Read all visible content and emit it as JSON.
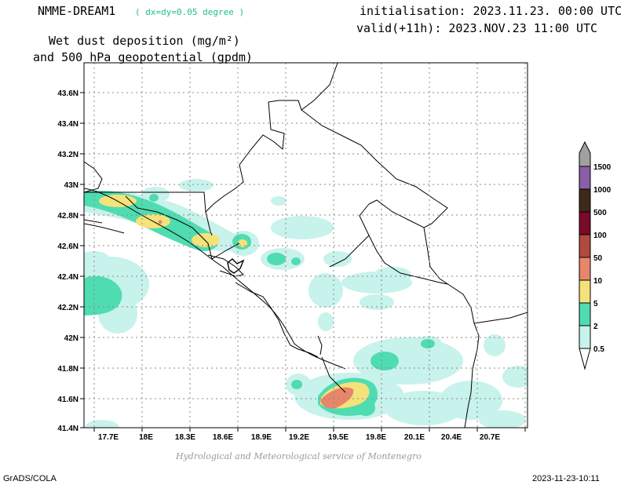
{
  "header": {
    "model": "NMME-DREAM1",
    "resolution": "( dx=dy=0.05 degree )",
    "title_line1": "Wet dust deposition (mg/m²)",
    "title_line2": "and 500 hPa geopotential (gpdm)",
    "init": "initialisation: 2023.11.23. 00:00 UTC",
    "valid": "valid(+11h): 2023.NOV.23 11:00 UTC"
  },
  "map": {
    "lat_labels": [
      "43.6N",
      "43.4N",
      "43.2N",
      "43N",
      "42.8N",
      "42.6N",
      "42.4N",
      "42.2N",
      "42N",
      "41.8N",
      "41.6N",
      "41.4N"
    ],
    "lon_labels": [
      "17.7E",
      "18E",
      "18.3E",
      "18.6E",
      "18.9E",
      "19.2E",
      "19.5E",
      "19.8E",
      "20.1E",
      "20.4E",
      "20.7E"
    ]
  },
  "legend": {
    "levels": [
      "1500",
      "1000",
      "500",
      "100",
      "50",
      "10",
      "5",
      "2",
      "0.5"
    ],
    "colors": [
      "#8a5ea8",
      "#3d2a1a",
      "#7a0a2a",
      "#b04a40",
      "#e8866a",
      "#f4e27a",
      "#4fdcb0",
      "#c8f2ec"
    ],
    "arrow_top_color": "#a0a0a0"
  },
  "footer": {
    "credit": "Hydrological and Meteorological service of Montenegro",
    "software": "GrADS/COLA",
    "timestamp": "2023-11-23-10:11"
  }
}
